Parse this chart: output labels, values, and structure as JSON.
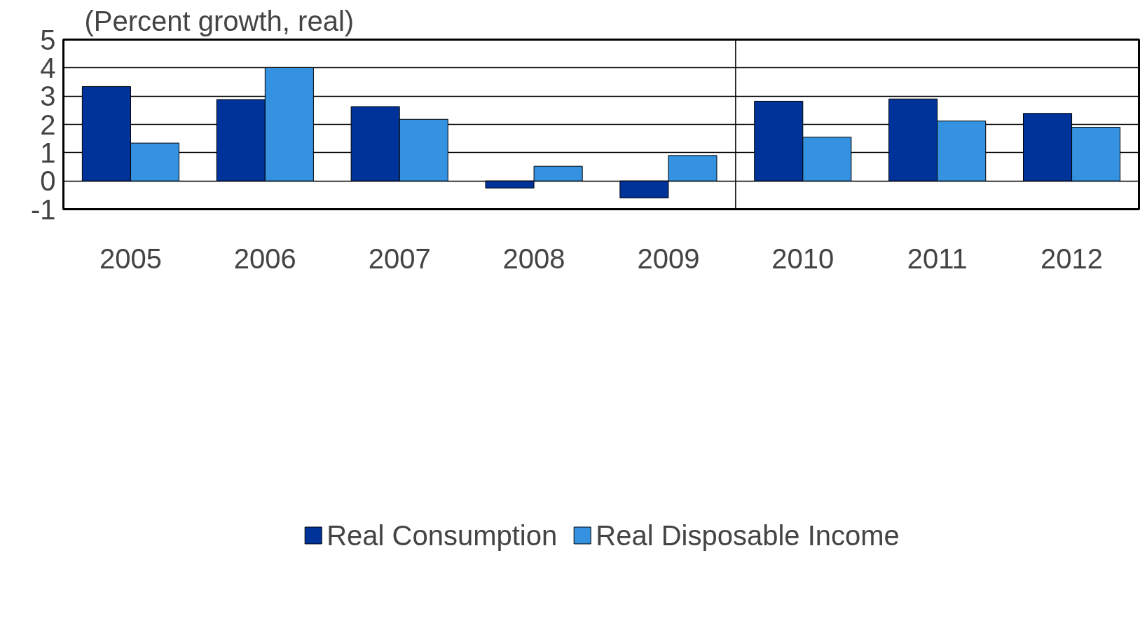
{
  "chart_data": {
    "type": "bar",
    "ylabel": "(Percent growth, real)",
    "x": [
      2005,
      2006,
      2007,
      2008,
      2009,
      2010,
      2011,
      2012
    ],
    "xlim": [
      2004.5,
      2012.5
    ],
    "xticks": [
      2005,
      2006,
      2007,
      2008,
      2009,
      2010,
      2011,
      2012
    ],
    "ylim": [
      -1,
      5
    ],
    "yticks": [
      -1,
      0,
      1,
      2,
      3,
      4,
      5
    ],
    "series": [
      {
        "name": "Real Consumption",
        "color": "#003399",
        "values": [
          3.34,
          2.88,
          2.63,
          -0.25,
          -0.6,
          2.82,
          2.9,
          2.39
        ]
      },
      {
        "name": "Real Disposable Income",
        "color": "#3592e0",
        "values": [
          1.34,
          4.01,
          2.18,
          0.52,
          0.9,
          1.55,
          2.12,
          1.9
        ]
      }
    ],
    "ref_lines": [
      {
        "axis": "x",
        "value": 2009.5,
        "color": "#000000"
      }
    ],
    "grid": "y",
    "legend": "bottom"
  }
}
